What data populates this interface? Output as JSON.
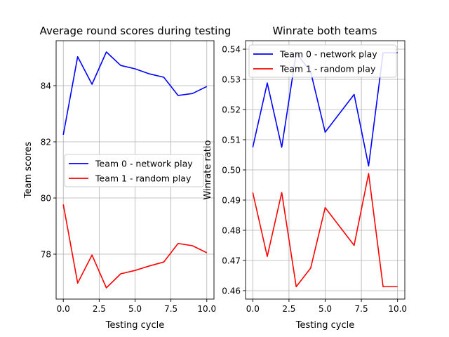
{
  "chart_data": [
    {
      "type": "line",
      "title": "Average round scores during testing",
      "xlabel": "Testing cycle",
      "ylabel": "Team scores",
      "xlim": [
        -0.5,
        10.5
      ],
      "ylim": [
        76.4,
        85.6
      ],
      "xticks": [
        0.0,
        2.5,
        5.0,
        7.5,
        10.0
      ],
      "xtick_labels": [
        "0.0",
        "2.5",
        "5.0",
        "7.5",
        "10.0"
      ],
      "yticks": [
        78,
        80,
        82,
        84
      ],
      "ytick_labels": [
        "78",
        "80",
        "82",
        "84"
      ],
      "grid": true,
      "legend_position": "center-right",
      "x": [
        0,
        1,
        2,
        3,
        4,
        5,
        6,
        7,
        8,
        9,
        10
      ],
      "series": [
        {
          "name": "Team 0 - network play",
          "color": "#0000ff",
          "values": [
            82.25,
            85.03,
            84.05,
            85.2,
            84.72,
            84.6,
            84.42,
            84.3,
            83.65,
            83.72,
            83.97
          ]
        },
        {
          "name": "Team 1 - random play",
          "color": "#ff0000",
          "values": [
            79.77,
            76.97,
            77.97,
            76.8,
            77.3,
            77.42,
            77.58,
            77.72,
            78.38,
            78.3,
            78.05
          ]
        }
      ]
    },
    {
      "type": "line",
      "title": "Winrate both teams",
      "xlabel": "Testing cycle",
      "ylabel": "Winrate ratio",
      "xlim": [
        -0.5,
        10.5
      ],
      "ylim": [
        0.4572,
        0.5428
      ],
      "xticks": [
        0.0,
        2.5,
        5.0,
        7.5,
        10.0
      ],
      "xtick_labels": [
        "0.0",
        "2.5",
        "5.0",
        "7.5",
        "10.0"
      ],
      "yticks": [
        0.46,
        0.47,
        0.48,
        0.49,
        0.5,
        0.51,
        0.52,
        0.53,
        0.54
      ],
      "ytick_labels": [
        "0.46",
        "0.47",
        "0.48",
        "0.49",
        "0.50",
        "0.51",
        "0.52",
        "0.53",
        "0.54"
      ],
      "grid": true,
      "legend_position": "top-right",
      "x": [
        0,
        1,
        2,
        3,
        4,
        5,
        7,
        8,
        9,
        10
      ],
      "series": [
        {
          "name": "Team 0 - network play",
          "color": "#0000ff",
          "values": [
            0.5075,
            0.5288,
            0.5075,
            0.5388,
            0.5325,
            0.5125,
            0.525,
            0.5013,
            0.5388,
            0.5388
          ]
        },
        {
          "name": "Team 1 - random play",
          "color": "#ff0000",
          "values": [
            0.4925,
            0.4713,
            0.4925,
            0.4613,
            0.4675,
            0.4875,
            0.475,
            0.4988,
            0.4613,
            0.4613
          ]
        }
      ]
    }
  ]
}
